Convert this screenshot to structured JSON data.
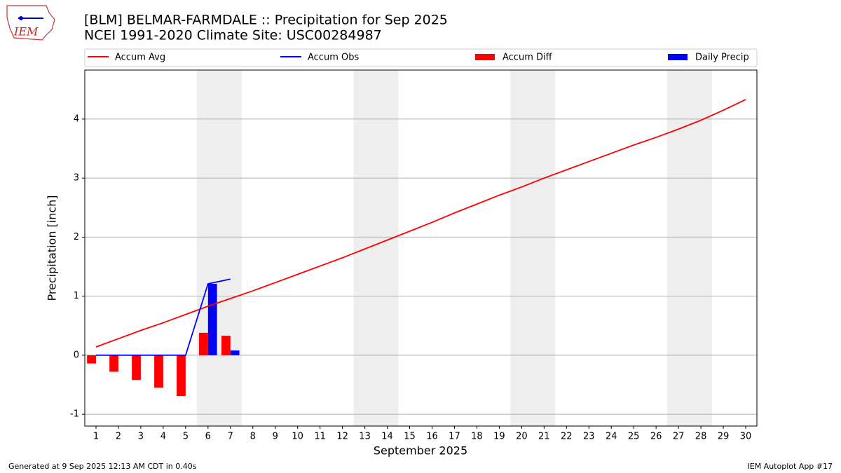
{
  "chart_data": {
    "type": "line",
    "title": "[BLM] BELMAR-FARMDALE :: Precipitation for Sep 2025",
    "subtitle": "NCEI 1991-2020 Climate Site: USC00284987",
    "xlabel": "September 2025",
    "ylabel": "Precipitation [inch]",
    "x": [
      1,
      2,
      3,
      4,
      5,
      6,
      7,
      8,
      9,
      10,
      11,
      12,
      13,
      14,
      15,
      16,
      17,
      18,
      19,
      20,
      21,
      22,
      23,
      24,
      25,
      26,
      27,
      28,
      29,
      30
    ],
    "series": [
      {
        "name": "Accum Avg",
        "color": "#ff0000",
        "kind": "line",
        "values": [
          0.14,
          0.28,
          0.42,
          0.55,
          0.69,
          0.83,
          0.96,
          1.09,
          1.23,
          1.37,
          1.51,
          1.65,
          1.8,
          1.95,
          2.1,
          2.25,
          2.41,
          2.56,
          2.71,
          2.85,
          3.0,
          3.14,
          3.28,
          3.42,
          3.56,
          3.69,
          3.83,
          3.98,
          4.15,
          4.33
        ]
      },
      {
        "name": "Accum Obs",
        "color": "#0000ff",
        "kind": "line",
        "values": [
          0,
          0,
          0,
          0,
          0,
          1.21,
          1.29,
          null,
          null,
          null,
          null,
          null,
          null,
          null,
          null,
          null,
          null,
          null,
          null,
          null,
          null,
          null,
          null,
          null,
          null,
          null,
          null,
          null,
          null,
          null
        ]
      },
      {
        "name": "Accum Diff",
        "color": "#ff0000",
        "kind": "bar",
        "offset": -0.4,
        "values": [
          -0.14,
          -0.28,
          -0.42,
          -0.55,
          -0.69,
          0.38,
          0.33,
          null,
          null,
          null,
          null,
          null,
          null,
          null,
          null,
          null,
          null,
          null,
          null,
          null,
          null,
          null,
          null,
          null,
          null,
          null,
          null,
          null,
          null,
          null
        ]
      },
      {
        "name": "Daily Precip",
        "color": "#0000ff",
        "kind": "bar",
        "offset": 0,
        "values": [
          0,
          0,
          0,
          0,
          0,
          1.21,
          0.08,
          null,
          null,
          null,
          null,
          null,
          null,
          null,
          null,
          null,
          null,
          null,
          null,
          null,
          null,
          null,
          null,
          null,
          null,
          null,
          null,
          null,
          null,
          null
        ]
      }
    ],
    "shade_spans": [
      [
        5.5,
        7.5
      ],
      [
        12.5,
        14.5
      ],
      [
        19.5,
        21.5
      ],
      [
        26.5,
        28.5
      ]
    ],
    "xlim": [
      0.5,
      30.5
    ],
    "xticks": [
      1,
      2,
      3,
      4,
      5,
      6,
      7,
      8,
      9,
      10,
      11,
      12,
      13,
      14,
      15,
      16,
      17,
      18,
      19,
      20,
      21,
      22,
      23,
      24,
      25,
      26,
      27,
      28,
      29,
      30
    ],
    "ylim": [
      -1.2,
      4.83
    ],
    "yticks": [
      -1,
      0,
      1,
      2,
      3,
      4
    ],
    "grid": true
  },
  "footer": {
    "left": "Generated at 9 Sep 2025 12:13 AM CDT in 0.40s",
    "right": "IEM Autoplot App #17",
    "logo": "IEM"
  }
}
